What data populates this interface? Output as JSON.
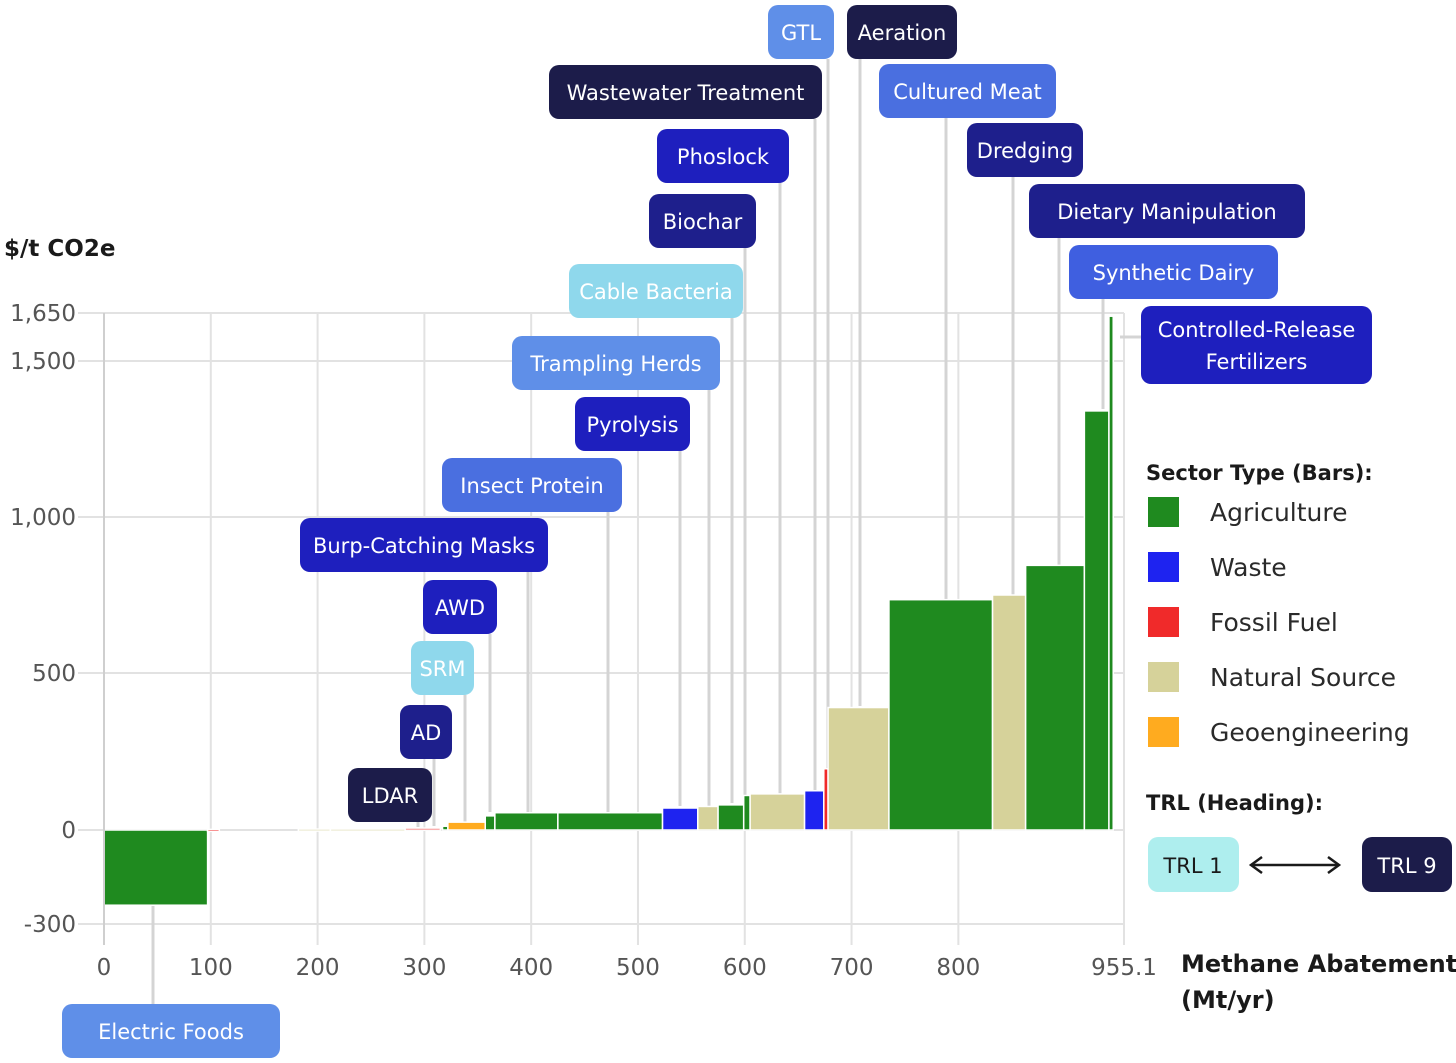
{
  "chart_data": {
    "type": "bar",
    "subtype": "marginal-abatement-cost-curve",
    "ylabel": "$/t CO2e",
    "xlabel_lines": [
      "Methane Abatement",
      "(Mt/yr)"
    ],
    "xlim": [
      0,
      955.1
    ],
    "ylim": [
      -300,
      1650
    ],
    "yticks": [
      {
        "v": -300,
        "label": "-300"
      },
      {
        "v": 0,
        "label": "0"
      },
      {
        "v": 500,
        "label": "500"
      },
      {
        "v": 1000,
        "label": "1,000"
      },
      {
        "v": 1500,
        "label": "1,500"
      },
      {
        "v": 1650,
        "label": "1,650"
      }
    ],
    "xticks": [
      {
        "v": 0,
        "label": "0"
      },
      {
        "v": 100,
        "label": "100"
      },
      {
        "v": 200,
        "label": "200"
      },
      {
        "v": 300,
        "label": "300"
      },
      {
        "v": 400,
        "label": "400"
      },
      {
        "v": 500,
        "label": "500"
      },
      {
        "v": 600,
        "label": "600"
      },
      {
        "v": 700,
        "label": "700"
      },
      {
        "v": 800,
        "label": "800"
      },
      {
        "v": 955.1,
        "label": "955.1"
      }
    ],
    "grid": true,
    "sector_colors": {
      "Agriculture": "#1f8a1f",
      "Waste": "#1e23f0",
      "Fossil Fuel": "#f02a2a",
      "Natural Source": "#d6d29a",
      "Geoengineering": "#ffab1f"
    },
    "bars": [
      {
        "x0": 0,
        "x1": 97,
        "value": -240,
        "sector": "Agriculture"
      },
      {
        "x0": 97,
        "x1": 108,
        "value": 2,
        "sector": "Fossil Fuel"
      },
      {
        "x0": 182,
        "x1": 212,
        "value": 3,
        "sector": "Natural Source"
      },
      {
        "x0": 212,
        "x1": 282,
        "value": 3,
        "sector": "Natural Source"
      },
      {
        "x0": 282,
        "x1": 315,
        "value": 6,
        "sector": "Fossil Fuel"
      },
      {
        "x0": 317,
        "x1": 322,
        "value": 12,
        "sector": "Agriculture"
      },
      {
        "x0": 322,
        "x1": 357,
        "value": 25,
        "sector": "Geoengineering"
      },
      {
        "x0": 357,
        "x1": 366,
        "value": 45,
        "sector": "Agriculture"
      },
      {
        "x0": 366,
        "x1": 425,
        "value": 55,
        "sector": "Agriculture"
      },
      {
        "x0": 425,
        "x1": 523,
        "value": 55,
        "sector": "Agriculture"
      },
      {
        "x0": 523,
        "x1": 556,
        "value": 70,
        "sector": "Waste"
      },
      {
        "x0": 556,
        "x1": 575,
        "value": 75,
        "sector": "Natural Source"
      },
      {
        "x0": 575,
        "x1": 599,
        "value": 80,
        "sector": "Agriculture"
      },
      {
        "x0": 599,
        "x1": 605,
        "value": 110,
        "sector": "Agriculture"
      },
      {
        "x0": 605,
        "x1": 656,
        "value": 115,
        "sector": "Natural Source"
      },
      {
        "x0": 656,
        "x1": 674,
        "value": 125,
        "sector": "Waste"
      },
      {
        "x0": 674,
        "x1": 678,
        "value": 195,
        "sector": "Fossil Fuel"
      },
      {
        "x0": 678,
        "x1": 735,
        "value": 390,
        "sector": "Natural Source"
      },
      {
        "x0": 735,
        "x1": 832,
        "value": 735,
        "sector": "Agriculture"
      },
      {
        "x0": 832,
        "x1": 863,
        "value": 750,
        "sector": "Natural Source"
      },
      {
        "x0": 863,
        "x1": 918,
        "value": 845,
        "sector": "Agriculture"
      },
      {
        "x0": 918,
        "x1": 941,
        "value": 1340,
        "sector": "Agriculture"
      },
      {
        "x0": 941,
        "x1": 945,
        "value": 1640,
        "sector": "Agriculture"
      }
    ],
    "labels": [
      {
        "text": "Electric Foods",
        "trl_color": "#5f8fe8",
        "text_color": "#ffffff"
      },
      {
        "text": "LDAR",
        "trl_color": "#1c1c4a",
        "text_color": "#ffffff"
      },
      {
        "text": "AD",
        "trl_color": "#1e1f8c",
        "text_color": "#ffffff"
      },
      {
        "text": "SRM",
        "trl_color": "#8fd8ec",
        "text_color": "#ffffff"
      },
      {
        "text": "AWD",
        "trl_color": "#1e1fbe",
        "text_color": "#ffffff"
      },
      {
        "text": "Burp-Catching Masks",
        "trl_color": "#1e1fbe",
        "text_color": "#ffffff"
      },
      {
        "text": "Insect Protein",
        "trl_color": "#4a6fe0",
        "text_color": "#ffffff"
      },
      {
        "text": "Pyrolysis",
        "trl_color": "#1e1fbe",
        "text_color": "#ffffff"
      },
      {
        "text": "Trampling Herds",
        "trl_color": "#5f8fe8",
        "text_color": "#ffffff"
      },
      {
        "text": "Cable Bacteria",
        "trl_color": "#8fd8ec",
        "text_color": "#ffffff"
      },
      {
        "text": "Biochar",
        "trl_color": "#1e1f8c",
        "text_color": "#ffffff"
      },
      {
        "text": "Phoslock",
        "trl_color": "#1e1fbe",
        "text_color": "#ffffff"
      },
      {
        "text": "Wastewater Treatment",
        "trl_color": "#1c1c4a",
        "text_color": "#ffffff"
      },
      {
        "text": "GTL",
        "trl_color": "#5f8fe8",
        "text_color": "#ffffff"
      },
      {
        "text": "Aeration",
        "trl_color": "#1c1c4a",
        "text_color": "#ffffff"
      },
      {
        "text": "Cultured Meat",
        "trl_color": "#4a6fe0",
        "text_color": "#ffffff"
      },
      {
        "text": "Dredging",
        "trl_color": "#1e1f8c",
        "text_color": "#ffffff"
      },
      {
        "text": "Dietary Manipulation",
        "trl_color": "#1e1f8c",
        "text_color": "#ffffff"
      },
      {
        "text": "Synthetic Dairy",
        "trl_color": "#3f5fe0",
        "text_color": "#ffffff"
      },
      {
        "text": "Controlled-Release\nFertilizers",
        "trl_color": "#1e1fbe",
        "text_color": "#ffffff"
      }
    ],
    "legend": {
      "sector_title": "Sector Type (Bars):",
      "sector_items": [
        "Agriculture",
        "Waste",
        "Fossil Fuel",
        "Natural Source",
        "Geoengineering"
      ],
      "trl_title": "TRL (Heading):",
      "trl_low": {
        "label": "TRL 1",
        "color": "#aeeeee",
        "text_color": "#1a1a1a"
      },
      "trl_high": {
        "label": "TRL 9",
        "color": "#1c1c4a",
        "text_color": "#ffffff"
      }
    }
  }
}
